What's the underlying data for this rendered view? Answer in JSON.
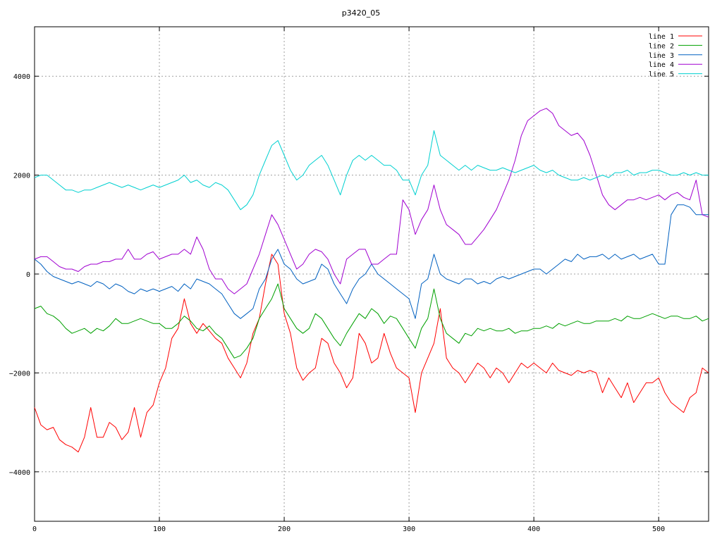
{
  "chart_data": {
    "type": "line",
    "title": "p3420_05",
    "xlabel": "",
    "ylabel": "",
    "xlim": [
      0,
      540
    ],
    "ylim": [
      -5000,
      5000
    ],
    "x_ticks": [
      0,
      100,
      200,
      300,
      400,
      500
    ],
    "y_ticks": [
      -4000,
      -2000,
      0,
      2000,
      4000
    ],
    "grid": true,
    "legend_position": "top-right",
    "series": [
      {
        "name": "line 1",
        "color": "#ff0000",
        "x": [
          0,
          5,
          10,
          15,
          20,
          25,
          30,
          35,
          40,
          45,
          50,
          55,
          60,
          65,
          70,
          75,
          80,
          85,
          90,
          95,
          100,
          105,
          110,
          115,
          120,
          125,
          130,
          135,
          140,
          145,
          150,
          155,
          160,
          165,
          170,
          175,
          180,
          185,
          190,
          195,
          200,
          205,
          210,
          215,
          220,
          225,
          230,
          235,
          240,
          245,
          250,
          255,
          260,
          265,
          270,
          275,
          280,
          285,
          290,
          295,
          300,
          305,
          310,
          315,
          320,
          325,
          330,
          335,
          340,
          345,
          350,
          355,
          360,
          365,
          370,
          375,
          380,
          385,
          390,
          395,
          400,
          405,
          410,
          415,
          420,
          425,
          430,
          435,
          440,
          445,
          450,
          455,
          460,
          465,
          470,
          475,
          480,
          485,
          490,
          495,
          500,
          505,
          510,
          515,
          520,
          525,
          530,
          535,
          540
        ],
        "values": [
          -2700,
          -3050,
          -3150,
          -3100,
          -3350,
          -3450,
          -3500,
          -3600,
          -3300,
          -2700,
          -3300,
          -3300,
          -3000,
          -3100,
          -3350,
          -3200,
          -2700,
          -3300,
          -2800,
          -2650,
          -2200,
          -1900,
          -1300,
          -1100,
          -500,
          -1000,
          -1200,
          -1000,
          -1150,
          -1300,
          -1400,
          -1700,
          -1900,
          -2100,
          -1800,
          -1200,
          -900,
          -200,
          400,
          200,
          -800,
          -1200,
          -1900,
          -2150,
          -2000,
          -1900,
          -1300,
          -1400,
          -1800,
          -2000,
          -2300,
          -2100,
          -1200,
          -1400,
          -1800,
          -1700,
          -1200,
          -1600,
          -1900,
          -2000,
          -2100,
          -2800,
          -2000,
          -1700,
          -1400,
          -700,
          -1700,
          -1900,
          -2000,
          -2200,
          -2000,
          -1800,
          -1900,
          -2100,
          -1900,
          -2000,
          -2200,
          -2000,
          -1800,
          -1900,
          -1800,
          -1900,
          -2000,
          -1800,
          -1950,
          -2000,
          -2050,
          -1950,
          -2000,
          -1950,
          -2000,
          -2400,
          -2100,
          -2300,
          -2500,
          -2200,
          -2600,
          -2400,
          -2200,
          -2200,
          -2100,
          -2400,
          -2600,
          -2700,
          -2800,
          -2500,
          -2400,
          -1900,
          -2000
        ]
      },
      {
        "name": "line 2",
        "color": "#00a000",
        "x": [
          0,
          5,
          10,
          15,
          20,
          25,
          30,
          35,
          40,
          45,
          50,
          55,
          60,
          65,
          70,
          75,
          80,
          85,
          90,
          95,
          100,
          105,
          110,
          115,
          120,
          125,
          130,
          135,
          140,
          145,
          150,
          155,
          160,
          165,
          170,
          175,
          180,
          185,
          190,
          195,
          200,
          205,
          210,
          215,
          220,
          225,
          230,
          235,
          240,
          245,
          250,
          255,
          260,
          265,
          270,
          275,
          280,
          285,
          290,
          295,
          300,
          305,
          310,
          315,
          320,
          325,
          330,
          335,
          340,
          345,
          350,
          355,
          360,
          365,
          370,
          375,
          380,
          385,
          390,
          395,
          400,
          405,
          410,
          415,
          420,
          425,
          430,
          435,
          440,
          445,
          450,
          455,
          460,
          465,
          470,
          475,
          480,
          485,
          490,
          495,
          500,
          505,
          510,
          515,
          520,
          525,
          530,
          535,
          540
        ],
        "values": [
          -700,
          -650,
          -800,
          -850,
          -950,
          -1100,
          -1200,
          -1150,
          -1100,
          -1200,
          -1100,
          -1150,
          -1050,
          -900,
          -1000,
          -1000,
          -950,
          -900,
          -950,
          -1000,
          -1000,
          -1100,
          -1100,
          -1000,
          -850,
          -950,
          -1100,
          -1150,
          -1050,
          -1200,
          -1300,
          -1500,
          -1700,
          -1650,
          -1500,
          -1300,
          -900,
          -700,
          -500,
          -200,
          -700,
          -900,
          -1100,
          -1200,
          -1100,
          -800,
          -900,
          -1100,
          -1300,
          -1450,
          -1200,
          -1000,
          -800,
          -900,
          -700,
          -800,
          -1000,
          -850,
          -900,
          -1100,
          -1300,
          -1500,
          -1100,
          -900,
          -300,
          -900,
          -1200,
          -1300,
          -1400,
          -1200,
          -1250,
          -1100,
          -1150,
          -1100,
          -1150,
          -1150,
          -1100,
          -1200,
          -1150,
          -1150,
          -1100,
          -1100,
          -1050,
          -1100,
          -1000,
          -1050,
          -1000,
          -950,
          -1000,
          -1000,
          -950,
          -950,
          -950,
          -900,
          -950,
          -850,
          -900,
          -900,
          -850,
          -800,
          -850,
          -900,
          -850,
          -850,
          -900,
          -900,
          -850,
          -950,
          -900
        ]
      },
      {
        "name": "line 3",
        "color": "#0060c0",
        "x": [
          0,
          5,
          10,
          15,
          20,
          25,
          30,
          35,
          40,
          45,
          50,
          55,
          60,
          65,
          70,
          75,
          80,
          85,
          90,
          95,
          100,
          105,
          110,
          115,
          120,
          125,
          130,
          135,
          140,
          145,
          150,
          155,
          160,
          165,
          170,
          175,
          180,
          185,
          190,
          195,
          200,
          205,
          210,
          215,
          220,
          225,
          230,
          235,
          240,
          245,
          250,
          255,
          260,
          265,
          270,
          275,
          280,
          285,
          290,
          295,
          300,
          305,
          310,
          315,
          320,
          325,
          330,
          335,
          340,
          345,
          350,
          355,
          360,
          365,
          370,
          375,
          380,
          385,
          390,
          395,
          400,
          405,
          410,
          415,
          420,
          425,
          430,
          435,
          440,
          445,
          450,
          455,
          460,
          465,
          470,
          475,
          480,
          485,
          490,
          495,
          500,
          505,
          510,
          515,
          520,
          525,
          530,
          535,
          540
        ],
        "values": [
          300,
          200,
          50,
          -50,
          -100,
          -150,
          -200,
          -150,
          -200,
          -250,
          -150,
          -200,
          -300,
          -200,
          -250,
          -350,
          -400,
          -300,
          -350,
          -300,
          -350,
          -300,
          -250,
          -350,
          -200,
          -300,
          -100,
          -150,
          -200,
          -300,
          -400,
          -600,
          -800,
          -900,
          -800,
          -700,
          -300,
          -100,
          300,
          500,
          200,
          100,
          -100,
          -200,
          -150,
          -100,
          200,
          100,
          -200,
          -400,
          -600,
          -300,
          -100,
          0,
          200,
          0,
          -100,
          -200,
          -300,
          -400,
          -500,
          -900,
          -200,
          -100,
          400,
          0,
          -100,
          -150,
          -200,
          -100,
          -100,
          -200,
          -150,
          -200,
          -100,
          -50,
          -100,
          -50,
          0,
          50,
          100,
          100,
          0,
          100,
          200,
          300,
          250,
          400,
          300,
          350,
          350,
          400,
          300,
          400,
          300,
          350,
          400,
          300,
          350,
          400,
          200,
          200,
          1200,
          1400,
          1400,
          1350,
          1200,
          1200,
          1200
        ]
      },
      {
        "name": "line 4",
        "color": "#a000d0",
        "x": [
          0,
          5,
          10,
          15,
          20,
          25,
          30,
          35,
          40,
          45,
          50,
          55,
          60,
          65,
          70,
          75,
          80,
          85,
          90,
          95,
          100,
          105,
          110,
          115,
          120,
          125,
          130,
          135,
          140,
          145,
          150,
          155,
          160,
          165,
          170,
          175,
          180,
          185,
          190,
          195,
          200,
          205,
          210,
          215,
          220,
          225,
          230,
          235,
          240,
          245,
          250,
          255,
          260,
          265,
          270,
          275,
          280,
          285,
          290,
          295,
          300,
          305,
          310,
          315,
          320,
          325,
          330,
          335,
          340,
          345,
          350,
          355,
          360,
          365,
          370,
          375,
          380,
          385,
          390,
          395,
          400,
          405,
          410,
          415,
          420,
          425,
          430,
          435,
          440,
          445,
          450,
          455,
          460,
          465,
          470,
          475,
          480,
          485,
          490,
          495,
          500,
          505,
          510,
          515,
          520,
          525,
          530,
          535,
          540
        ],
        "values": [
          300,
          350,
          350,
          250,
          150,
          100,
          100,
          50,
          150,
          200,
          200,
          250,
          250,
          300,
          300,
          500,
          300,
          300,
          400,
          450,
          300,
          350,
          400,
          400,
          500,
          400,
          750,
          500,
          100,
          -100,
          -100,
          -300,
          -400,
          -300,
          -200,
          100,
          400,
          800,
          1200,
          1000,
          700,
          400,
          100,
          200,
          400,
          500,
          450,
          300,
          0,
          -200,
          300,
          400,
          500,
          500,
          200,
          200,
          300,
          400,
          400,
          1500,
          1300,
          800,
          1100,
          1300,
          1800,
          1300,
          1000,
          900,
          800,
          600,
          600,
          750,
          900,
          1100,
          1300,
          1600,
          1900,
          2300,
          2800,
          3100,
          3200,
          3300,
          3350,
          3250,
          3000,
          2900,
          2800,
          2850,
          2700,
          2400,
          2000,
          1600,
          1400,
          1300,
          1400,
          1500,
          1500,
          1550,
          1500,
          1550,
          1600,
          1500,
          1600,
          1650,
          1550,
          1500,
          1900,
          1200,
          1150
        ]
      },
      {
        "name": "line 5",
        "color": "#00d0d0",
        "x": [
          0,
          5,
          10,
          15,
          20,
          25,
          30,
          35,
          40,
          45,
          50,
          55,
          60,
          65,
          70,
          75,
          80,
          85,
          90,
          95,
          100,
          105,
          110,
          115,
          120,
          125,
          130,
          135,
          140,
          145,
          150,
          155,
          160,
          165,
          170,
          175,
          180,
          185,
          190,
          195,
          200,
          205,
          210,
          215,
          220,
          225,
          230,
          235,
          240,
          245,
          250,
          255,
          260,
          265,
          270,
          275,
          280,
          285,
          290,
          295,
          300,
          305,
          310,
          315,
          320,
          325,
          330,
          335,
          340,
          345,
          350,
          355,
          360,
          365,
          370,
          375,
          380,
          385,
          390,
          395,
          400,
          405,
          410,
          415,
          420,
          425,
          430,
          435,
          440,
          445,
          450,
          455,
          460,
          465,
          470,
          475,
          480,
          485,
          490,
          495,
          500,
          505,
          510,
          515,
          520,
          525,
          530,
          535,
          540
        ],
        "values": [
          1950,
          2000,
          2000,
          1900,
          1800,
          1700,
          1700,
          1650,
          1700,
          1700,
          1750,
          1800,
          1850,
          1800,
          1750,
          1800,
          1750,
          1700,
          1750,
          1800,
          1750,
          1800,
          1850,
          1900,
          2000,
          1850,
          1900,
          1800,
          1750,
          1850,
          1800,
          1700,
          1500,
          1300,
          1400,
          1600,
          2000,
          2300,
          2600,
          2700,
          2400,
          2100,
          1900,
          2000,
          2200,
          2300,
          2400,
          2200,
          1900,
          1600,
          2000,
          2300,
          2400,
          2300,
          2400,
          2300,
          2200,
          2200,
          2100,
          1900,
          1900,
          1600,
          2000,
          2200,
          2900,
          2400,
          2300,
          2200,
          2100,
          2200,
          2100,
          2200,
          2150,
          2100,
          2100,
          2150,
          2100,
          2050,
          2100,
          2150,
          2200,
          2100,
          2050,
          2100,
          2000,
          1950,
          1900,
          1900,
          1950,
          1900,
          1950,
          2000,
          1950,
          2050,
          2050,
          2100,
          2000,
          2050,
          2050,
          2100,
          2100,
          2050,
          2000,
          2000,
          2050,
          2000,
          2050,
          2000,
          2000
        ]
      }
    ]
  }
}
